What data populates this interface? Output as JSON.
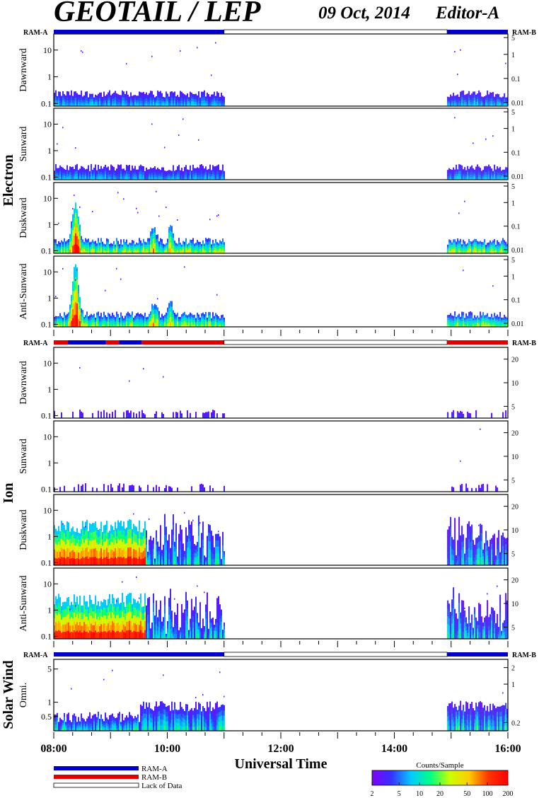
{
  "header": {
    "title": "GEOTAIL / LEP",
    "date": "09 Oct, 2014",
    "editor": "Editor-A"
  },
  "sections": [
    {
      "label": "Electron",
      "panels": [
        0,
        1,
        2,
        3
      ]
    },
    {
      "label": "Ion",
      "panels": [
        4,
        5,
        6,
        7
      ]
    },
    {
      "label": "Solar Wind",
      "panels": [
        8
      ]
    }
  ],
  "mode_bars": [
    {
      "left_label": "RAM-A",
      "right_label": "RAM-B",
      "segments": [
        {
          "start": 8.0,
          "end": 11.0,
          "mode": "RAM-A"
        },
        {
          "start": 11.0,
          "end": 14.93,
          "mode": "Lack of Data"
        },
        {
          "start": 14.93,
          "end": 16.0,
          "mode": "RAM-A"
        }
      ]
    },
    {
      "left_label": "RAM-A",
      "right_label": "RAM-B",
      "segments": [
        {
          "start": 8.0,
          "end": 8.25,
          "mode": "RAM-B"
        },
        {
          "start": 8.25,
          "end": 8.92,
          "mode": "RAM-A"
        },
        {
          "start": 8.92,
          "end": 9.15,
          "mode": "RAM-B"
        },
        {
          "start": 9.15,
          "end": 9.55,
          "mode": "RAM-A"
        },
        {
          "start": 9.55,
          "end": 11.0,
          "mode": "RAM-B"
        },
        {
          "start": 11.0,
          "end": 14.93,
          "mode": "Lack of Data"
        },
        {
          "start": 14.93,
          "end": 16.0,
          "mode": "RAM-B"
        }
      ]
    },
    {
      "left_label": "RAM-A",
      "right_label": "RAM-B",
      "segments": [
        {
          "start": 8.0,
          "end": 11.0,
          "mode": "RAM-A"
        },
        {
          "start": 11.0,
          "end": 14.93,
          "mode": "Lack of Data"
        },
        {
          "start": 14.93,
          "end": 16.0,
          "mode": "RAM-A"
        }
      ]
    }
  ],
  "chart_data": {
    "type": "heatmap",
    "x_range": [
      8,
      16
    ],
    "x_ticks": [
      "08:00",
      "10:00",
      "12:00",
      "14:00",
      "16:00"
    ],
    "x_tick_values": [
      8,
      10,
      12,
      14,
      16
    ],
    "xlabel": "Universal Time",
    "data_intervals": [
      [
        8.0,
        11.0
      ],
      [
        14.93,
        16.0
      ]
    ],
    "panels": [
      {
        "name": "Dawnward",
        "species": "Electron",
        "ylim": [
          0.08,
          40
        ],
        "left_ticks": [
          "0.1",
          "1",
          "10"
        ],
        "left_tick_values": [
          0.1,
          1,
          10
        ],
        "right_ticks": [
          "0.01",
          "0.1",
          "1",
          "5"
        ],
        "right_tick_values": [
          0.01,
          0.1,
          1,
          5
        ],
        "peak_level": 0.42,
        "bursts": []
      },
      {
        "name": "Sunward",
        "species": "Electron",
        "ylim": [
          0.08,
          40
        ],
        "left_ticks": [
          "0.1",
          "1",
          "10"
        ],
        "left_tick_values": [
          0.1,
          1,
          10
        ],
        "right_ticks": [
          "0.01",
          "0.1",
          "1",
          "5"
        ],
        "right_tick_values": [
          0.01,
          0.1,
          1,
          5
        ],
        "peak_level": 0.4,
        "bursts": []
      },
      {
        "name": "Duskward",
        "species": "Electron",
        "ylim": [
          0.08,
          40
        ],
        "left_ticks": [
          "0.1",
          "1",
          "10"
        ],
        "left_tick_values": [
          0.1,
          1,
          10
        ],
        "right_ticks": [
          "0.01",
          "0.1",
          "1",
          "5"
        ],
        "right_tick_values": [
          0.01,
          0.1,
          1,
          5
        ],
        "peak_level": 0.85,
        "bursts": [
          [
            8.37,
            0.08,
            9.0
          ],
          [
            9.75,
            0.07,
            3.0
          ],
          [
            10.05,
            0.05,
            4.0
          ]
        ]
      },
      {
        "name": "Anti-Sunward",
        "species": "Electron",
        "ylim": [
          0.08,
          40
        ],
        "left_ticks": [
          "0.1",
          "1",
          "10"
        ],
        "left_tick_values": [
          0.1,
          1,
          10
        ],
        "right_ticks": [
          "0.01",
          "0.1",
          "1",
          "5"
        ],
        "right_tick_values": [
          0.01,
          0.1,
          1,
          5
        ],
        "peak_level": 0.8,
        "bursts": [
          [
            8.37,
            0.08,
            12.0
          ],
          [
            9.75,
            0.07,
            3.0
          ],
          [
            10.05,
            0.05,
            4.0
          ]
        ]
      },
      {
        "name": "Dawnward",
        "species": "Ion",
        "ylim": [
          0.08,
          40
        ],
        "left_ticks": [
          "0.1",
          "1",
          "10"
        ],
        "left_tick_values": [
          0.1,
          1,
          10
        ],
        "right_ticks": [
          "5",
          "10",
          "20"
        ],
        "right_tick_values": [
          5,
          10,
          20
        ],
        "peak_level": 0.2,
        "bursts": []
      },
      {
        "name": "Sunward",
        "species": "Ion",
        "ylim": [
          0.08,
          40
        ],
        "left_ticks": [
          "0.1",
          "1",
          "10"
        ],
        "left_tick_values": [
          0.1,
          1,
          10
        ],
        "right_ticks": [
          "5",
          "10",
          "20"
        ],
        "right_tick_values": [
          5,
          10,
          20
        ],
        "peak_level": 0.2,
        "bursts": []
      },
      {
        "name": "Duskward",
        "species": "Ion",
        "ylim": [
          0.08,
          40
        ],
        "left_ticks": [
          "0.1",
          "1",
          "10"
        ],
        "left_tick_values": [
          0.1,
          1,
          10
        ],
        "right_ticks": [
          "5",
          "10",
          "20"
        ],
        "right_tick_values": [
          5,
          10,
          20
        ],
        "peak_level": 1.0,
        "bursts": []
      },
      {
        "name": "Anti-Sunward",
        "species": "Ion",
        "ylim": [
          0.08,
          40
        ],
        "left_ticks": [
          "0.1",
          "1",
          "10"
        ],
        "left_tick_values": [
          0.1,
          1,
          10
        ],
        "right_ticks": [
          "5",
          "10",
          "20"
        ],
        "right_tick_values": [
          5,
          10,
          20
        ],
        "peak_level": 1.0,
        "bursts": []
      },
      {
        "name": "Omni.",
        "species": "Solar Wind",
        "ylim": [
          0.25,
          8
        ],
        "left_ticks": [
          "0.5",
          "1",
          "5"
        ],
        "left_tick_values": [
          0.5,
          1,
          5
        ],
        "right_ticks": [
          "0.2",
          "1",
          "2"
        ],
        "right_tick_values": [
          0.2,
          1,
          2
        ],
        "peak_level": 0.55,
        "bursts": []
      }
    ]
  },
  "legend": {
    "items": [
      {
        "label": "RAM-A",
        "color": "#0000c8"
      },
      {
        "label": "RAM-B",
        "color": "#e00000"
      },
      {
        "label": "Lack of Data",
        "color": "#ffffff"
      }
    ]
  },
  "colorbar": {
    "title": "Counts/Sample",
    "tick_labels": [
      "2",
      "5",
      "10",
      "20",
      "50",
      "100",
      "200"
    ],
    "tick_values": [
      2,
      5,
      10,
      20,
      50,
      100,
      200
    ],
    "range": [
      2,
      200
    ],
    "colors": [
      "#8000ff",
      "#3333ff",
      "#00ccff",
      "#00ff80",
      "#ccff00",
      "#ffcc00",
      "#ff3300",
      "#ff0000"
    ]
  }
}
